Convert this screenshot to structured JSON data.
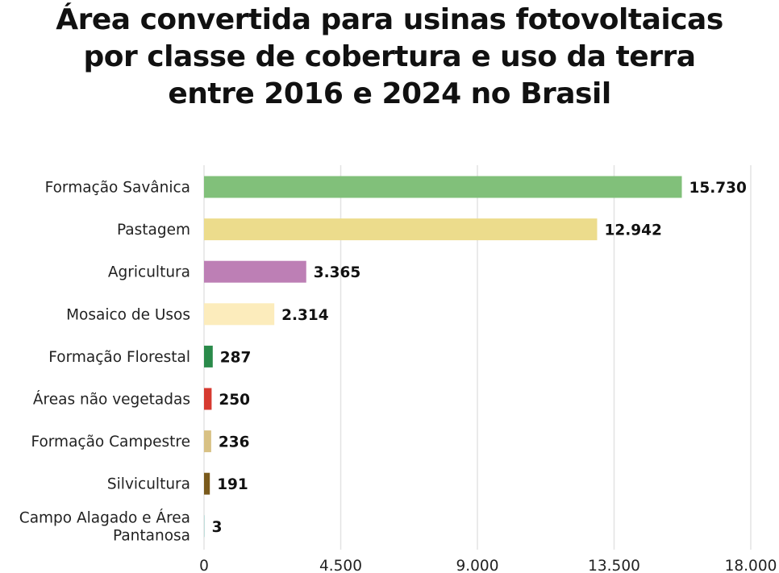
{
  "chart_data": {
    "type": "bar",
    "orientation": "horizontal",
    "title_lines": [
      "Área convertida para usinas fotovoltaicas",
      "por classe de cobertura e uso da terra",
      "entre 2016 e 2024 no Brasil"
    ],
    "categories": [
      "Formação Savânica",
      "Pastagem",
      "Agricultura",
      "Mosaico de Usos",
      "Formação Florestal",
      "Áreas não vegetadas",
      "Formação Campestre",
      "Silvicultura",
      "Campo Alagado e Área Pantanosa"
    ],
    "category_label_lines": [
      [
        "Formação Savânica"
      ],
      [
        "Pastagem"
      ],
      [
        "Agricultura"
      ],
      [
        "Mosaico de Usos"
      ],
      [
        "Formação Florestal"
      ],
      [
        "Áreas não vegetadas"
      ],
      [
        "Formação Campestre"
      ],
      [
        "Silvicultura"
      ],
      [
        "Campo Alagado e Área",
        "Pantanosa"
      ]
    ],
    "values": [
      15730,
      12942,
      3365,
      2314,
      287,
      250,
      236,
      191,
      3
    ],
    "value_labels": [
      "15.730",
      "12.942",
      "3.365",
      "2.314",
      "287",
      "250",
      "236",
      "191",
      "3"
    ],
    "colors": [
      "#81c07a",
      "#ecdc8c",
      "#bd7fb5",
      "#fcecbc",
      "#2a8a4a",
      "#d63a30",
      "#d8c184",
      "#7a5a1c",
      "#9fd3cf"
    ],
    "xticks": [
      0,
      4500,
      9000,
      13500,
      18000
    ],
    "xtick_labels": [
      "0",
      "4.500",
      "9.000",
      "13.500",
      "18.000"
    ],
    "xlim": [
      0,
      18000
    ],
    "grid": true,
    "legend": "none",
    "xlabel": "",
    "ylabel": ""
  }
}
